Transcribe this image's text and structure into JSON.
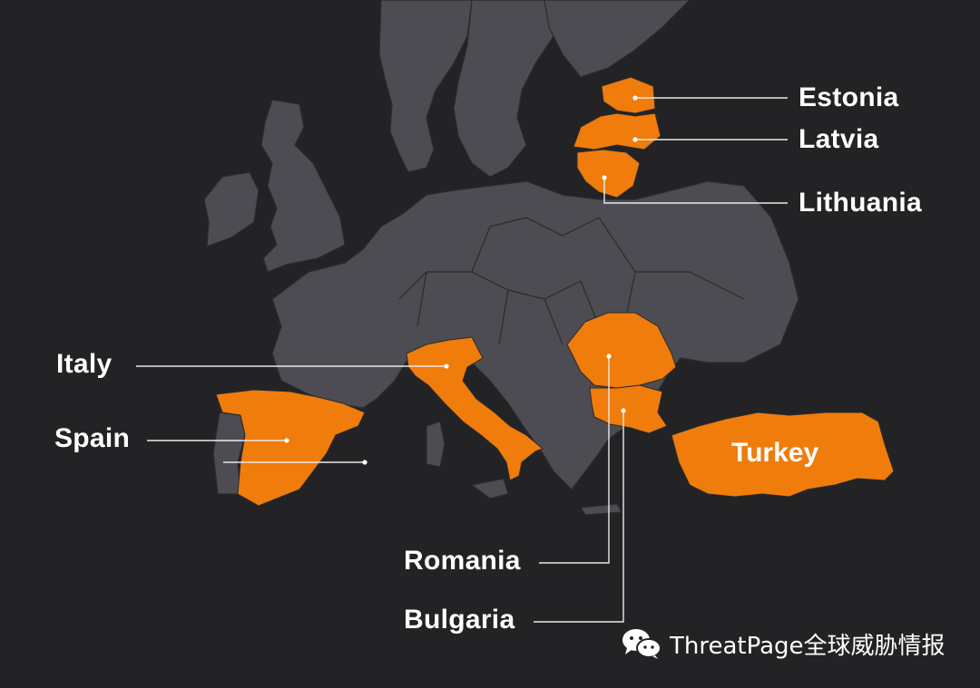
{
  "map": {
    "background_color": "#232326",
    "land_color": "#4d4c52",
    "highlight_color": "#f07c0c",
    "highlighted_countries": [
      {
        "id": "estonia",
        "label": "Estonia"
      },
      {
        "id": "latvia",
        "label": "Latvia"
      },
      {
        "id": "lithuania",
        "label": "Lithuania"
      },
      {
        "id": "italy",
        "label": "Italy"
      },
      {
        "id": "spain",
        "label": "Spain"
      },
      {
        "id": "romania",
        "label": "Romania"
      },
      {
        "id": "bulgaria",
        "label": "Bulgaria"
      },
      {
        "id": "turkey",
        "label": "Turkey"
      }
    ]
  },
  "watermark": {
    "icon": "wechat-icon",
    "text": "ThreatPage全球威胁情报"
  }
}
